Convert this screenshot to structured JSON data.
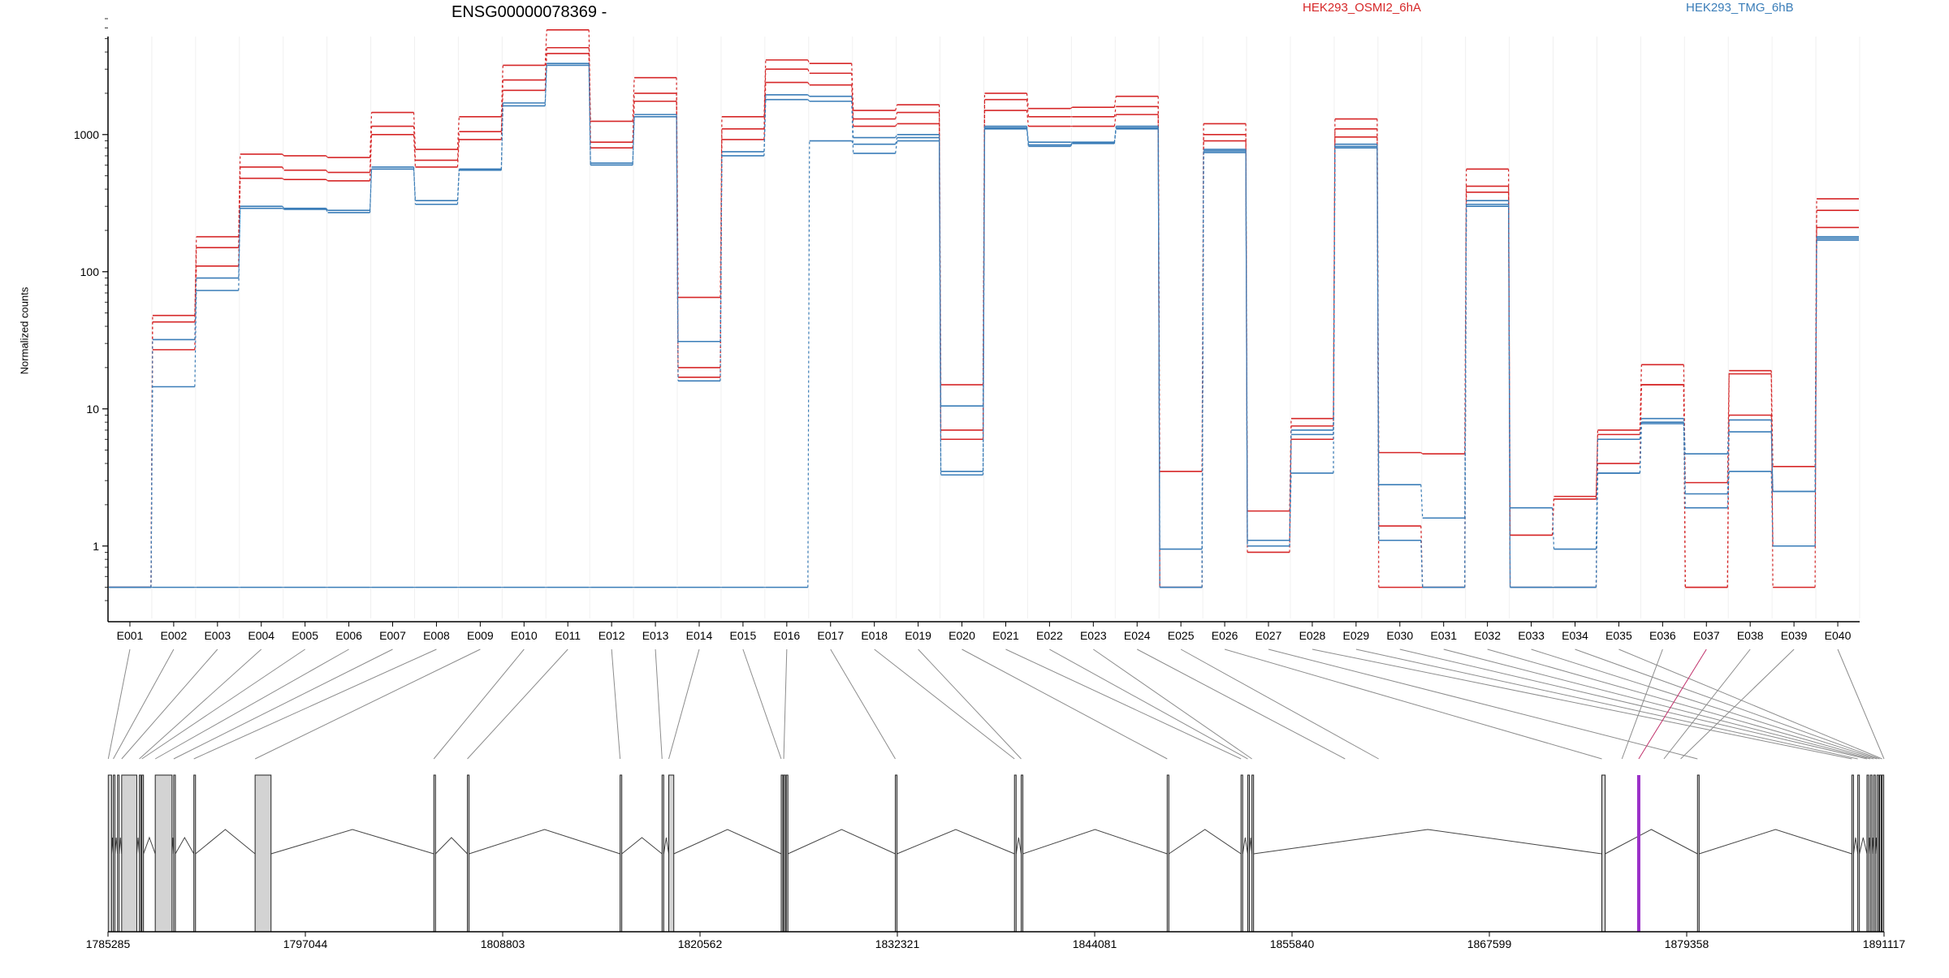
{
  "chart_data": {
    "type": "line",
    "title": "ENSG00000078369 -",
    "ylabel": "Normalized counts",
    "yscale": "log",
    "ylim": [
      0.4,
      7000
    ],
    "yticks": [
      1,
      10,
      100,
      1000
    ],
    "ytick_labels": [
      "1",
      "10",
      "100",
      "1000"
    ],
    "categories": [
      "E001",
      "E002",
      "E003",
      "E004",
      "E005",
      "E006",
      "E007",
      "E008",
      "E009",
      "E010",
      "E011",
      "E012",
      "E013",
      "E014",
      "E015",
      "E016",
      "E017",
      "E018",
      "E019",
      "E020",
      "E021",
      "E022",
      "E023",
      "E024",
      "E025",
      "E026",
      "E027",
      "E028",
      "E029",
      "E030",
      "E031",
      "E032",
      "E033",
      "E034",
      "E035",
      "E036",
      "E037",
      "E038",
      "E039",
      "E040"
    ],
    "colors": {
      "OSMI": "#d62728",
      "TMG": "#3a7db8",
      "highlight": "#9b30c8",
      "exon": "#d3d3d3"
    },
    "legend": [
      {
        "label": "HEK293_OSMI2_6hA",
        "color": "#d62728"
      },
      {
        "label": "HEK293_TMG_6hB",
        "color": "#3a7db8"
      }
    ],
    "series": [
      {
        "group": "OSMI",
        "values": [
          0.5,
          48,
          180,
          720,
          700,
          680,
          1450,
          780,
          1350,
          3200,
          5800,
          1250,
          2600,
          65,
          1350,
          3500,
          3300,
          1500,
          1650,
          15,
          2000,
          1550,
          1580,
          1900,
          3.5,
          1200,
          1.8,
          8.5,
          1300,
          4.8,
          4.7,
          560,
          1.2,
          2.3,
          7,
          21,
          2.9,
          19,
          3.8,
          340
        ]
      },
      {
        "group": "OSMI",
        "values": [
          0.5,
          43,
          150,
          580,
          550,
          530,
          1150,
          650,
          1050,
          2500,
          4300,
          880,
          2000,
          20,
          1100,
          3000,
          2800,
          1300,
          1450,
          7,
          1800,
          1350,
          1350,
          1600,
          0.5,
          1000,
          1.1,
          7.5,
          1100,
          1.4,
          0.5,
          420,
          1.2,
          2.2,
          6.5,
          15,
          0.5,
          18,
          0.5,
          280
        ]
      },
      {
        "group": "OSMI",
        "values": [
          0.5,
          27,
          110,
          480,
          470,
          460,
          1000,
          580,
          920,
          2100,
          3900,
          800,
          1750,
          17,
          920,
          2400,
          2300,
          1150,
          1200,
          6,
          1500,
          1150,
          1150,
          1400,
          0.5,
          900,
          0.9,
          6,
          960,
          0.5,
          0.5,
          380,
          0.5,
          0.5,
          4,
          15,
          0.5,
          9,
          1,
          210
        ]
      },
      {
        "group": "TMG",
        "values": [
          0.5,
          32,
          90,
          300,
          290,
          280,
          580,
          330,
          560,
          1700,
          3300,
          620,
          1400,
          31,
          750,
          1950,
          1900,
          950,
          1000,
          10.5,
          1150,
          880,
          880,
          1150,
          0.95,
          780,
          1.1,
          7,
          850,
          2.8,
          1.6,
          330,
          1.9,
          0.95,
          6,
          8.5,
          4.7,
          8.3,
          2.5,
          180
        ]
      },
      {
        "group": "TMG",
        "values": [
          0.5,
          14.5,
          73,
          290,
          285,
          270,
          560,
          310,
          550,
          1620,
          3200,
          600,
          1350,
          16,
          700,
          1800,
          1750,
          730,
          900,
          3.3,
          1100,
          820,
          860,
          1100,
          0.5,
          740,
          1,
          3.4,
          800,
          1.1,
          0.5,
          300,
          0.5,
          0.5,
          3.4,
          7.8,
          1.9,
          3.5,
          1,
          170
        ]
      },
      {
        "group": "TMG",
        "values": [
          0.5,
          0.5,
          0.5,
          0.5,
          0.5,
          0.5,
          0.5,
          0.5,
          0.5,
          0.5,
          0.5,
          0.5,
          0.5,
          0.5,
          0.5,
          0.5,
          900,
          850,
          950,
          3.5,
          1120,
          840,
          870,
          1120,
          0.5,
          760,
          1,
          6.5,
          820,
          1.1,
          0.5,
          310,
          0.5,
          0.5,
          3.4,
          8,
          2.4,
          6.8,
          2.5,
          175
        ]
      }
    ],
    "gene_model": {
      "genomic_range": [
        1785285,
        1891117
      ],
      "tick_labels": [
        "1785285",
        "1797044",
        "1808803",
        "1820562",
        "1832321",
        "1844081",
        "1855840",
        "1867599",
        "1879358",
        "1891117"
      ],
      "highlight_exon": "E037",
      "exon_starts": [
        1785300,
        1785600,
        1786100,
        1787150,
        1787300,
        1788100,
        1789200,
        1790400,
        1794050,
        1804700,
        1806700,
        1815800,
        1818300,
        1818700,
        1825400,
        1825550,
        1832200,
        1839300,
        1839700,
        1848400,
        1852800,
        1853200,
        1853450,
        1859000,
        1861000,
        1874300,
        1880000,
        1889200,
        1889550,
        1890100,
        1890300,
        1890500,
        1890700,
        1890850,
        1891000,
        1875500,
        1876500,
        1878000,
        1879000,
        1891117
      ],
      "gene_exons": [
        [
          1785300,
          1785500
        ],
        [
          1785600,
          1785700
        ],
        [
          1785850,
          1785950
        ],
        [
          1786100,
          1787000
        ],
        [
          1787150,
          1787250
        ],
        [
          1787300,
          1787400
        ],
        [
          1788100,
          1789100
        ],
        [
          1789200,
          1789300
        ],
        [
          1790400,
          1790500
        ],
        [
          1794050,
          1795000
        ],
        [
          1804700,
          1804800
        ],
        [
          1806700,
          1806800
        ],
        [
          1815800,
          1815900
        ],
        [
          1818300,
          1818400
        ],
        [
          1818700,
          1819000
        ],
        [
          1825400,
          1825500
        ],
        [
          1825550,
          1825650
        ],
        [
          1825700,
          1825800
        ],
        [
          1832200,
          1832300
        ],
        [
          1839300,
          1839400
        ],
        [
          1839700,
          1839800
        ],
        [
          1848400,
          1848500
        ],
        [
          1852800,
          1852900
        ],
        [
          1853200,
          1853300
        ],
        [
          1853450,
          1853550
        ],
        [
          1874300,
          1874500
        ],
        [
          1880000,
          1880100
        ],
        [
          1889200,
          1889300
        ],
        [
          1889550,
          1889650
        ],
        [
          1890100,
          1890200
        ],
        [
          1890300,
          1890400
        ],
        [
          1890500,
          1890600
        ],
        [
          1890700,
          1890800
        ],
        [
          1890850,
          1890950
        ],
        [
          1891000,
          1891100
        ]
      ]
    }
  }
}
